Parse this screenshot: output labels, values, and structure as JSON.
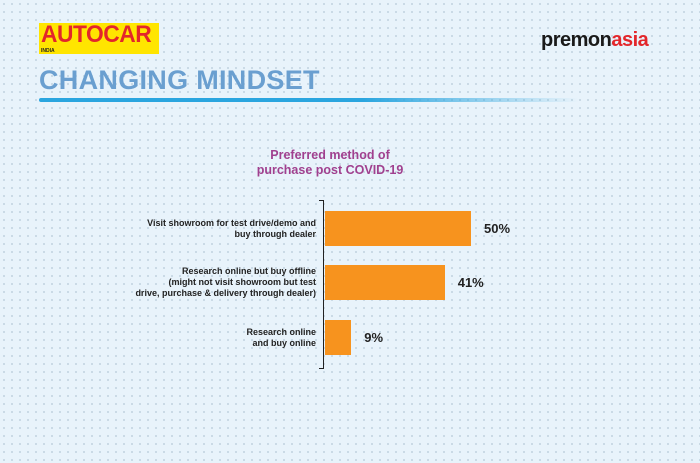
{
  "logos": {
    "autocar": "AUTOCAR",
    "autocar_sub": "INDIA",
    "premon_a": "premon",
    "premon_b": "asia"
  },
  "header": {
    "title": "CHANGING MINDSET"
  },
  "colors": {
    "bar": "#f7931e",
    "title": "#6a9fd0",
    "chart_title": "#a0408f"
  },
  "chart_data": {
    "type": "bar",
    "orientation": "horizontal",
    "title": "Preferred method of purchase post COVID-19",
    "title_lines": [
      "Preferred method of",
      "purchase post COVID-19"
    ],
    "categories": [
      [
        "Visit showroom for test drive/demo and",
        "buy through dealer"
      ],
      [
        "Research online but buy offline",
        "(might not visit showroom but test",
        "drive, purchase & delivery through dealer)"
      ],
      [
        "Research online",
        "and buy online"
      ]
    ],
    "values": [
      50,
      41,
      9
    ],
    "labels": [
      "50%",
      "41%",
      "9%"
    ],
    "unit": "%"
  }
}
